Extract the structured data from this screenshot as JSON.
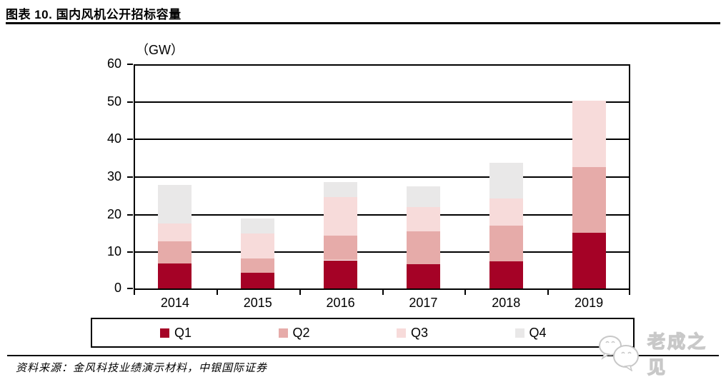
{
  "header": {
    "title": "图表 10. 国内风机公开招标容量"
  },
  "chart_data": {
    "type": "bar",
    "stacked": true,
    "title": "国内风机公开招标容量",
    "unit_label": "（GW）",
    "xlabel": "",
    "ylabel": "GW",
    "ylim": [
      0,
      60
    ],
    "yticks": [
      0,
      10,
      20,
      30,
      40,
      50,
      60
    ],
    "grid": true,
    "legend_position": "bottom",
    "categories": [
      "2014",
      "2015",
      "2016",
      "2017",
      "2018",
      "2019"
    ],
    "series": [
      {
        "name": "Q1",
        "color": "#A50226",
        "values": [
          6.6,
          4.1,
          7.5,
          6.5,
          7.3,
          14.9
        ]
      },
      {
        "name": "Q2",
        "color": "#E6ABA9",
        "values": [
          6.0,
          3.9,
          6.5,
          8.7,
          9.4,
          17.4
        ]
      },
      {
        "name": "Q3",
        "color": "#F7DBDA",
        "values": [
          4.6,
          6.6,
          10.3,
          6.4,
          7.2,
          17.6
        ]
      },
      {
        "name": "Q4",
        "color": "#E9E8E8",
        "values": [
          10.3,
          4.1,
          4.0,
          5.6,
          9.6,
          0
        ]
      }
    ],
    "totals": [
      27.5,
      18.7,
      28.3,
      27.2,
      33.5,
      49.9
    ]
  },
  "footer": {
    "source_text": "资料来源：金风科技业绩演示材料，中银国际证券"
  },
  "watermark": {
    "text": "老成之见"
  }
}
